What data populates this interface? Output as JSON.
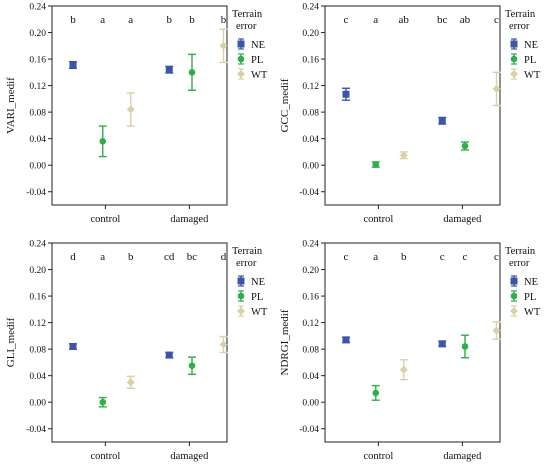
{
  "legend": {
    "title_line1": "Terrain",
    "title_line2": "error",
    "entries": [
      {
        "name": "NE",
        "marker": "square",
        "color": "#3b56a6"
      },
      {
        "name": "PL",
        "marker": "circle",
        "color": "#2fae4a"
      },
      {
        "name": "WT",
        "marker": "diamond",
        "color": "#d9d1a6"
      }
    ]
  },
  "chart_data": [
    {
      "type": "scatter",
      "subtype": "error-bar",
      "ylabel": "VARI_medif",
      "categories": [
        "control",
        "damaged"
      ],
      "yticks": [
        "0.24",
        "0.20",
        "0.16",
        "0.12",
        "0.08",
        "0.04",
        "0.00",
        "-0.04"
      ],
      "ylim": [
        -0.06,
        0.24
      ],
      "letters": [
        "b",
        "a",
        "a",
        "b",
        "b",
        "b"
      ],
      "series": [
        {
          "name": "NE",
          "mean": [
            0.151,
            0.144
          ],
          "low": [
            0.146,
            0.139
          ],
          "high": [
            0.156,
            0.149
          ]
        },
        {
          "name": "PL",
          "mean": [
            0.036,
            0.14
          ],
          "low": [
            0.013,
            0.113
          ],
          "high": [
            0.059,
            0.167
          ]
        },
        {
          "name": "WT",
          "mean": [
            0.084,
            0.18
          ],
          "low": [
            0.059,
            0.155
          ],
          "high": [
            0.109,
            0.205
          ]
        }
      ]
    },
    {
      "type": "scatter",
      "subtype": "error-bar",
      "ylabel": "GCC_medif",
      "categories": [
        "control",
        "damaged"
      ],
      "yticks": [
        "0.24",
        "0.20",
        "0.16",
        "0.12",
        "0.08",
        "0.04",
        "0.00",
        "-0.04"
      ],
      "ylim": [
        -0.06,
        0.24
      ],
      "letters": [
        "c",
        "a",
        "ab",
        "bc",
        "ab",
        "c"
      ],
      "series": [
        {
          "name": "NE",
          "mean": [
            0.107,
            0.067
          ],
          "low": [
            0.098,
            0.062
          ],
          "high": [
            0.116,
            0.072
          ]
        },
        {
          "name": "PL",
          "mean": [
            0.001,
            0.029
          ],
          "low": [
            -0.003,
            0.023
          ],
          "high": [
            0.005,
            0.035
          ]
        },
        {
          "name": "WT",
          "mean": [
            0.015,
            0.115
          ],
          "low": [
            0.01,
            0.09
          ],
          "high": [
            0.02,
            0.14
          ]
        }
      ]
    },
    {
      "type": "scatter",
      "subtype": "error-bar",
      "ylabel": "GLI_medif",
      "categories": [
        "control",
        "damaged"
      ],
      "yticks": [
        "0.24",
        "0.20",
        "0.16",
        "0.12",
        "0.08",
        "0.04",
        "0.00",
        "-0.04"
      ],
      "ylim": [
        -0.06,
        0.24
      ],
      "letters": [
        "d",
        "a",
        "b",
        "cd",
        "bc",
        "d"
      ],
      "series": [
        {
          "name": "NE",
          "mean": [
            0.084,
            0.071
          ],
          "low": [
            0.08,
            0.067
          ],
          "high": [
            0.088,
            0.075
          ]
        },
        {
          "name": "PL",
          "mean": [
            0.0,
            0.055
          ],
          "low": [
            -0.007,
            0.042
          ],
          "high": [
            0.007,
            0.068
          ]
        },
        {
          "name": "WT",
          "mean": [
            0.03,
            0.087
          ],
          "low": [
            0.021,
            0.075
          ],
          "high": [
            0.039,
            0.099
          ]
        }
      ]
    },
    {
      "type": "scatter",
      "subtype": "error-bar",
      "ylabel": "NDRGI_medif",
      "categories": [
        "control",
        "damaged"
      ],
      "yticks": [
        "0.24",
        "0.20",
        "0.16",
        "0.12",
        "0.08",
        "0.04",
        "0.00",
        "-0.04"
      ],
      "ylim": [
        -0.06,
        0.24
      ],
      "letters": [
        "c",
        "a",
        "b",
        "c",
        "c",
        "c"
      ],
      "series": [
        {
          "name": "NE",
          "mean": [
            0.094,
            0.088
          ],
          "low": [
            0.09,
            0.084
          ],
          "high": [
            0.098,
            0.092
          ]
        },
        {
          "name": "PL",
          "mean": [
            0.014,
            0.084
          ],
          "low": [
            0.003,
            0.067
          ],
          "high": [
            0.025,
            0.101
          ]
        },
        {
          "name": "WT",
          "mean": [
            0.049,
            0.108
          ],
          "low": [
            0.034,
            0.095
          ],
          "high": [
            0.064,
            0.121
          ]
        }
      ]
    }
  ]
}
